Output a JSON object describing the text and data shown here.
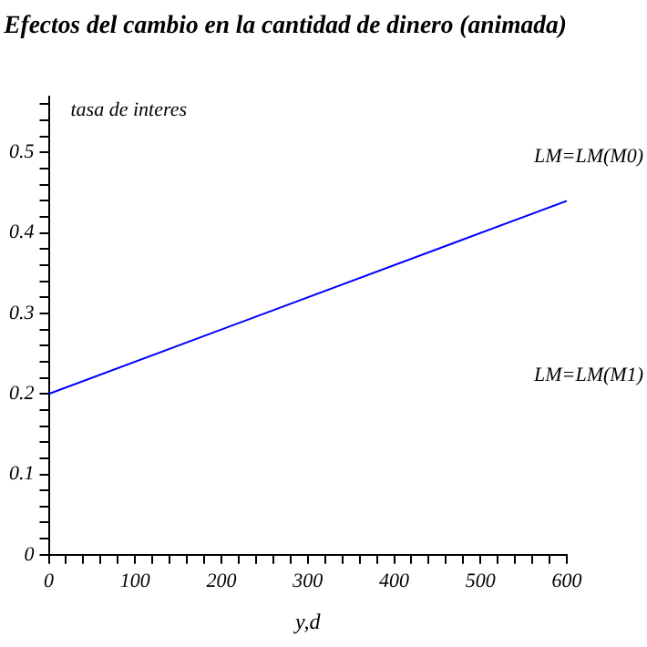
{
  "chart_data": {
    "type": "line",
    "title": "Efectos del cambio en la cantidad de dinero (animada)",
    "xlabel": "y,d",
    "ylabel": "tasa de interes",
    "x": [
      0,
      600
    ],
    "series": [
      {
        "name": "LM=LM(M0)",
        "color": "#0000ff",
        "values": [
          0.2,
          0.44
        ]
      }
    ],
    "annotations": [
      "LM=LM(M1)"
    ],
    "xlim": [
      0,
      600
    ],
    "ylim": [
      0,
      0.57
    ],
    "xticks": [
      0,
      {
        "value": 20,
        "label": null
      },
      {
        "value": 40,
        "label": null
      },
      {
        "value": 60,
        "label": null
      },
      {
        "value": 80,
        "label": null
      },
      100,
      {
        "value": 120,
        "label": null
      },
      {
        "value": 140,
        "label": null
      },
      {
        "value": 160,
        "label": null
      },
      {
        "value": 180,
        "label": null
      },
      200,
      {
        "value": 220,
        "label": null
      },
      {
        "value": 240,
        "label": null
      },
      {
        "value": 260,
        "label": null
      },
      {
        "value": 280,
        "label": null
      },
      300,
      {
        "value": 320,
        "label": null
      },
      {
        "value": 340,
        "label": null
      },
      {
        "value": 360,
        "label": null
      },
      {
        "value": 380,
        "label": null
      },
      400,
      {
        "value": 420,
        "label": null
      },
      {
        "value": 440,
        "label": null
      },
      {
        "value": 460,
        "label": null
      },
      {
        "value": 480,
        "label": null
      },
      500,
      {
        "value": 520,
        "label": null
      },
      {
        "value": 540,
        "label": null
      },
      {
        "value": 560,
        "label": null
      },
      {
        "value": 580,
        "label": null
      },
      600
    ],
    "yticks": [
      0,
      {
        "value": 0.02,
        "label": null
      },
      {
        "value": 0.04,
        "label": null
      },
      {
        "value": 0.06,
        "label": null
      },
      {
        "value": 0.08,
        "label": null
      },
      0.1,
      {
        "value": 0.12,
        "label": null
      },
      {
        "value": 0.14,
        "label": null
      },
      {
        "value": 0.16,
        "label": null
      },
      {
        "value": 0.18,
        "label": null
      },
      0.2,
      {
        "value": 0.22,
        "label": null
      },
      {
        "value": 0.24,
        "label": null
      },
      {
        "value": 0.26,
        "label": null
      },
      {
        "value": 0.28,
        "label": null
      },
      0.3,
      {
        "value": 0.32,
        "label": null
      },
      {
        "value": 0.34,
        "label": null
      },
      {
        "value": 0.36,
        "label": null
      },
      {
        "value": 0.38,
        "label": null
      },
      0.4,
      {
        "value": 0.42,
        "label": null
      },
      {
        "value": 0.44,
        "label": null
      },
      {
        "value": 0.46,
        "label": null
      },
      {
        "value": 0.48,
        "label": null
      },
      0.5,
      {
        "value": 0.52,
        "label": null
      },
      {
        "value": 0.54,
        "label": null
      },
      {
        "value": 0.56,
        "label": null
      }
    ],
    "grid": false,
    "legend": false,
    "marker": "none",
    "line_style": "solid"
  }
}
